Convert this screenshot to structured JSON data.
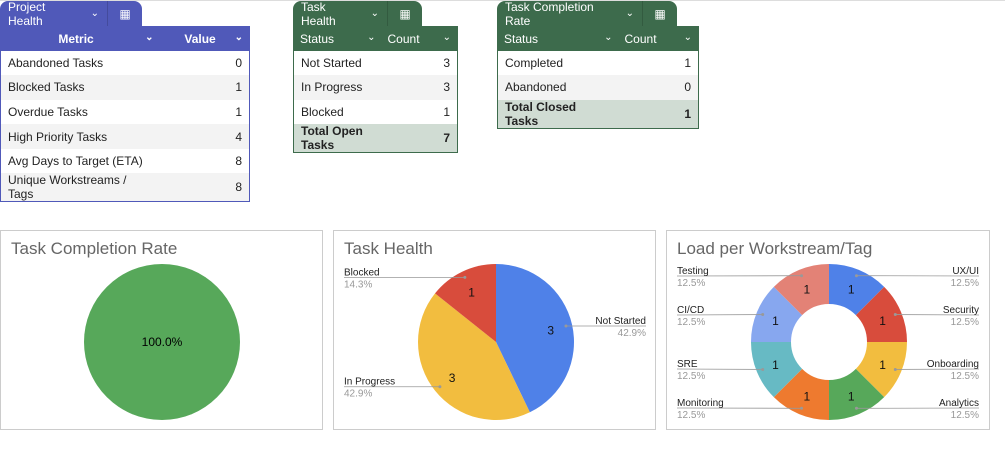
{
  "project_health": {
    "tab": "Project Health",
    "headers": [
      "Metric",
      "Value"
    ],
    "rows": [
      [
        "Abandoned Tasks",
        "0"
      ],
      [
        "Blocked Tasks",
        "1"
      ],
      [
        "Overdue Tasks",
        "1"
      ],
      [
        "High Priority Tasks",
        "4"
      ],
      [
        "Avg Days to Target (ETA)",
        "8"
      ],
      [
        "Unique Workstreams / Tags",
        "8"
      ]
    ]
  },
  "task_health": {
    "tab": "Task Health",
    "headers": [
      "Status",
      "Count"
    ],
    "rows": [
      [
        "Not Started",
        "3"
      ],
      [
        "In Progress",
        "3"
      ],
      [
        "Blocked",
        "1"
      ]
    ],
    "total": [
      "Total Open Tasks",
      "7"
    ]
  },
  "completion": {
    "tab": "Task Completion Rate",
    "headers": [
      "Status",
      "Count"
    ],
    "rows": [
      [
        "Completed",
        "1"
      ],
      [
        "Abandoned",
        "0"
      ]
    ],
    "total": [
      "Total Closed Tasks",
      "1"
    ]
  },
  "chart_data": [
    {
      "type": "pie",
      "title": "Task Completion Rate",
      "slices": [
        {
          "label": "Completed",
          "value": 1,
          "pct": "100.0%",
          "color": "#57a85a"
        }
      ]
    },
    {
      "type": "pie",
      "title": "Task Health",
      "slices": [
        {
          "label": "Not Started",
          "value": 3,
          "pct": "42.9%",
          "color": "#4f81e8"
        },
        {
          "label": "In Progress",
          "value": 3,
          "pct": "42.9%",
          "color": "#f2bd3f"
        },
        {
          "label": "Blocked",
          "value": 1,
          "pct": "14.3%",
          "color": "#d84c3c"
        }
      ]
    },
    {
      "type": "donut",
      "title": "Load per Workstream/Tag",
      "slices": [
        {
          "label": "UX/UI",
          "value": 1,
          "pct": "12.5%",
          "color": "#4f81e8"
        },
        {
          "label": "Security",
          "value": 1,
          "pct": "12.5%",
          "color": "#d84c3c"
        },
        {
          "label": "Onboarding",
          "value": 1,
          "pct": "12.5%",
          "color": "#f2bd3f"
        },
        {
          "label": "Analytics",
          "value": 1,
          "pct": "12.5%",
          "color": "#57a85a"
        },
        {
          "label": "Monitoring",
          "value": 1,
          "pct": "12.5%",
          "color": "#ee7a2f"
        },
        {
          "label": "SRE",
          "value": 1,
          "pct": "12.5%",
          "color": "#67bac4"
        },
        {
          "label": "CI/CD",
          "value": 1,
          "pct": "12.5%",
          "color": "#87a7ef"
        },
        {
          "label": "Testing",
          "value": 1,
          "pct": "12.5%",
          "color": "#e38276"
        }
      ]
    }
  ]
}
